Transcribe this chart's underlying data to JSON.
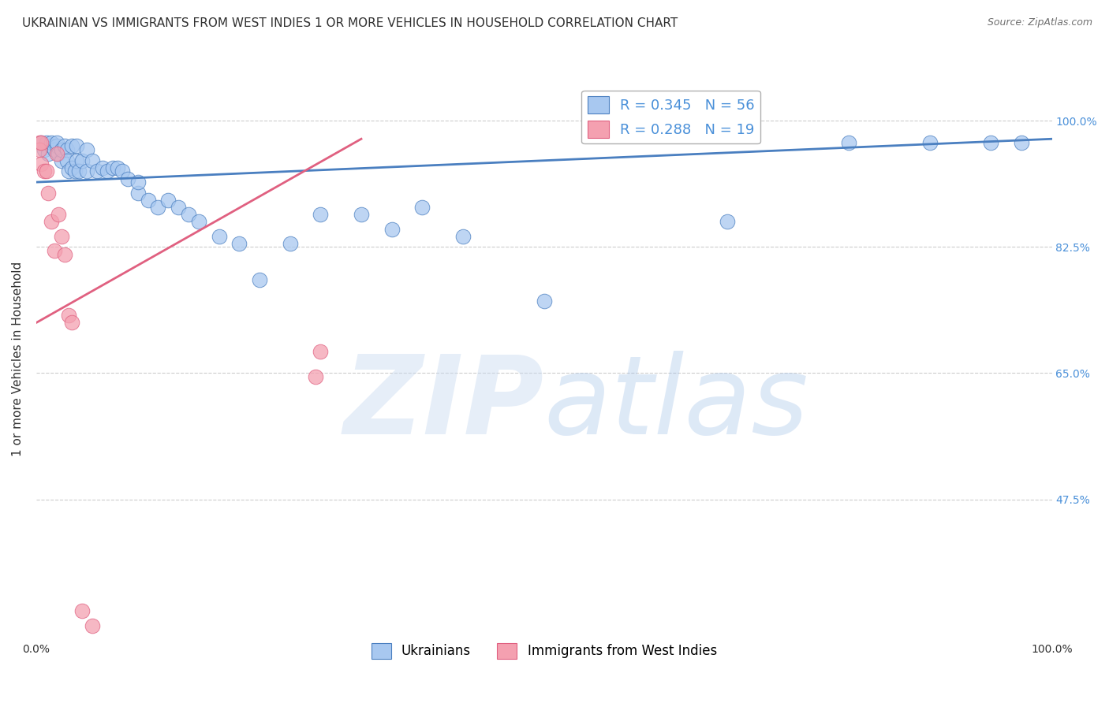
{
  "title": "UKRAINIAN VS IMMIGRANTS FROM WEST INDIES 1 OR MORE VEHICLES IN HOUSEHOLD CORRELATION CHART",
  "source": "Source: ZipAtlas.com",
  "ylabel": "1 or more Vehicles in Household",
  "xlim": [
    0.0,
    1.0
  ],
  "ylim": [
    0.28,
    1.06
  ],
  "yticks": [
    0.475,
    0.65,
    0.825,
    1.0
  ],
  "ytick_labels": [
    "47.5%",
    "65.0%",
    "82.5%",
    "100.0%"
  ],
  "xticks": [
    0.0,
    0.1,
    0.2,
    0.3,
    0.4,
    0.5,
    0.6,
    0.7,
    0.8,
    0.9,
    1.0
  ],
  "xtick_labels": [
    "0.0%",
    "",
    "",
    "",
    "",
    "",
    "",
    "",
    "",
    "",
    "100.0%"
  ],
  "blue_scatter_x": [
    0.005,
    0.008,
    0.01,
    0.012,
    0.015,
    0.015,
    0.018,
    0.02,
    0.02,
    0.022,
    0.025,
    0.025,
    0.028,
    0.03,
    0.03,
    0.032,
    0.035,
    0.035,
    0.038,
    0.04,
    0.04,
    0.042,
    0.045,
    0.05,
    0.05,
    0.055,
    0.06,
    0.065,
    0.07,
    0.075,
    0.08,
    0.085,
    0.09,
    0.1,
    0.1,
    0.11,
    0.12,
    0.13,
    0.14,
    0.15,
    0.16,
    0.18,
    0.2,
    0.22,
    0.25,
    0.28,
    0.32,
    0.35,
    0.38,
    0.42,
    0.5,
    0.68,
    0.8,
    0.88,
    0.94,
    0.97
  ],
  "blue_scatter_y": [
    0.97,
    0.96,
    0.97,
    0.955,
    0.965,
    0.97,
    0.96,
    0.965,
    0.97,
    0.955,
    0.945,
    0.96,
    0.965,
    0.96,
    0.945,
    0.93,
    0.935,
    0.965,
    0.93,
    0.965,
    0.945,
    0.93,
    0.945,
    0.96,
    0.93,
    0.945,
    0.93,
    0.935,
    0.93,
    0.935,
    0.935,
    0.93,
    0.92,
    0.9,
    0.915,
    0.89,
    0.88,
    0.89,
    0.88,
    0.87,
    0.86,
    0.84,
    0.83,
    0.78,
    0.83,
    0.87,
    0.87,
    0.85,
    0.88,
    0.84,
    0.75,
    0.86,
    0.97,
    0.97,
    0.97,
    0.97
  ],
  "pink_scatter_x": [
    0.003,
    0.003,
    0.005,
    0.005,
    0.008,
    0.01,
    0.012,
    0.015,
    0.018,
    0.02,
    0.022,
    0.025,
    0.028,
    0.032,
    0.035,
    0.045,
    0.055,
    0.275,
    0.28
  ],
  "pink_scatter_y": [
    0.97,
    0.96,
    0.97,
    0.94,
    0.93,
    0.93,
    0.9,
    0.86,
    0.82,
    0.955,
    0.87,
    0.84,
    0.815,
    0.73,
    0.72,
    0.32,
    0.3,
    0.645,
    0.68
  ],
  "blue_R": 0.345,
  "blue_N": 56,
  "pink_R": 0.288,
  "pink_N": 19,
  "blue_color": "#a8c8f0",
  "pink_color": "#f4a0b0",
  "blue_line_color": "#4a7fc0",
  "pink_line_color": "#e06080",
  "legend_label_blue": "Ukrainians",
  "legend_label_pink": "Immigrants from West Indies",
  "watermark_zip": "ZIP",
  "watermark_atlas": "atlas",
  "background_color": "#ffffff",
  "title_color": "#303030",
  "axis_label_color": "#303030",
  "tick_label_color_right": "#4a90d9",
  "grid_color": "#cccccc",
  "title_fontsize": 11,
  "source_fontsize": 9,
  "blue_trend_x": [
    0.0,
    1.0
  ],
  "blue_trend_y_start": 0.915,
  "blue_trend_y_end": 0.975,
  "pink_trend_x": [
    0.0,
    0.32
  ],
  "pink_trend_y_start": 0.72,
  "pink_trend_y_end": 0.975
}
